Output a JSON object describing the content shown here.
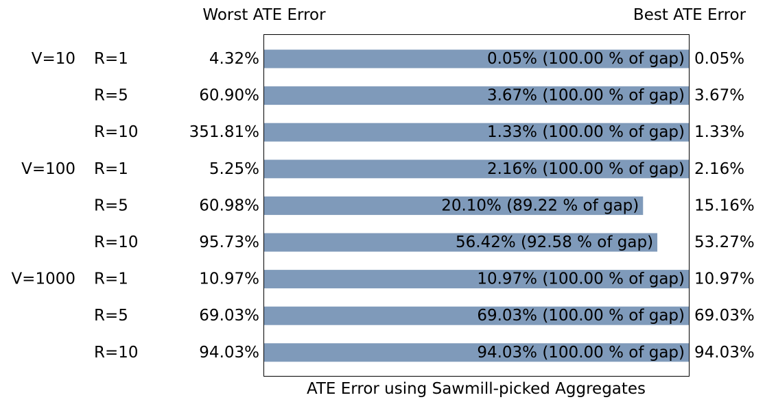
{
  "chart_data": {
    "type": "bar",
    "orientation": "horizontal",
    "header_left": "Worst ATE Error",
    "header_right": "Best ATE Error",
    "xlabel": "ATE Error using Sawmill-picked Aggregates",
    "bar_color": "#7f9aba",
    "rows": [
      {
        "group": "V=10",
        "r": "R=1",
        "worst": "4.32%",
        "bar_label": "0.05% (100.00 % of gap)",
        "best": "0.05%",
        "fraction_of_gap": 1.0
      },
      {
        "group": "",
        "r": "R=5",
        "worst": "60.90%",
        "bar_label": "3.67% (100.00 % of gap)",
        "best": "3.67%",
        "fraction_of_gap": 1.0
      },
      {
        "group": "",
        "r": "R=10",
        "worst": "351.81%",
        "bar_label": "1.33% (100.00 % of gap)",
        "best": "1.33%",
        "fraction_of_gap": 1.0
      },
      {
        "group": "V=100",
        "r": "R=1",
        "worst": "5.25%",
        "bar_label": "2.16% (100.00 % of gap)",
        "best": "2.16%",
        "fraction_of_gap": 1.0
      },
      {
        "group": "",
        "r": "R=5",
        "worst": "60.98%",
        "bar_label": "20.10% (89.22 % of gap)",
        "best": "15.16%",
        "fraction_of_gap": 0.8922
      },
      {
        "group": "",
        "r": "R=10",
        "worst": "95.73%",
        "bar_label": "56.42% (92.58 % of gap)",
        "best": "53.27%",
        "fraction_of_gap": 0.9258
      },
      {
        "group": "V=1000",
        "r": "R=1",
        "worst": "10.97%",
        "bar_label": "10.97% (100.00 % of gap)",
        "best": "10.97%",
        "fraction_of_gap": 1.0
      },
      {
        "group": "",
        "r": "R=5",
        "worst": "69.03%",
        "bar_label": "69.03% (100.00 % of gap)",
        "best": "69.03%",
        "fraction_of_gap": 1.0
      },
      {
        "group": "",
        "r": "R=10",
        "worst": "94.03%",
        "bar_label": "94.03% (100.00 % of gap)",
        "best": "94.03%",
        "fraction_of_gap": 1.0
      }
    ]
  }
}
